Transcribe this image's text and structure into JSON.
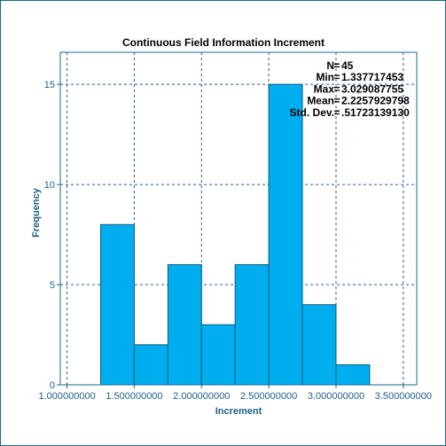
{
  "chart_data": {
    "type": "bar",
    "title": "Continuous Field Information Increment",
    "xlabel": "Increment",
    "ylabel": "Frequency",
    "xlim": [
      0.95,
      3.6
    ],
    "ylim": [
      0,
      16.6
    ],
    "grid": true,
    "x_ticks": [
      {
        "value": 1.0,
        "label": "1.000000000"
      },
      {
        "value": 1.5,
        "label": "1.500000000"
      },
      {
        "value": 2.0,
        "label": "2.000000000"
      },
      {
        "value": 2.5,
        "label": "2.500000000"
      },
      {
        "value": 3.0,
        "label": "3.000000000"
      },
      {
        "value": 3.5,
        "label": "3.500000000"
      }
    ],
    "y_ticks": [
      {
        "value": 0,
        "label": "0"
      },
      {
        "value": 5,
        "label": "5"
      },
      {
        "value": 10,
        "label": "10"
      },
      {
        "value": 15,
        "label": "15"
      }
    ],
    "bins": [
      {
        "start": 1.25,
        "end": 1.5,
        "count": 8
      },
      {
        "start": 1.5,
        "end": 1.75,
        "count": 2
      },
      {
        "start": 1.75,
        "end": 2.0,
        "count": 6
      },
      {
        "start": 2.0,
        "end": 2.25,
        "count": 3
      },
      {
        "start": 2.25,
        "end": 2.5,
        "count": 6
      },
      {
        "start": 2.5,
        "end": 2.75,
        "count": 15
      },
      {
        "start": 2.75,
        "end": 3.0,
        "count": 4
      },
      {
        "start": 3.0,
        "end": 3.25,
        "count": 1
      }
    ],
    "stats": [
      {
        "label": "N",
        "value": "45"
      },
      {
        "label": "Min",
        "value": "1.337717453"
      },
      {
        "label": "Max",
        "value": "3.029087755"
      },
      {
        "label": "Mean",
        "value": "2.2257929798"
      },
      {
        "label": "Std. Dev.",
        "value": ".51723139130"
      }
    ],
    "colors": {
      "bar_fill": "#00aeef",
      "bar_stroke": "#0d5b80",
      "axis": "#1b6a8c",
      "grid": "#1f5fa0",
      "text": "#1e5f8a"
    }
  }
}
